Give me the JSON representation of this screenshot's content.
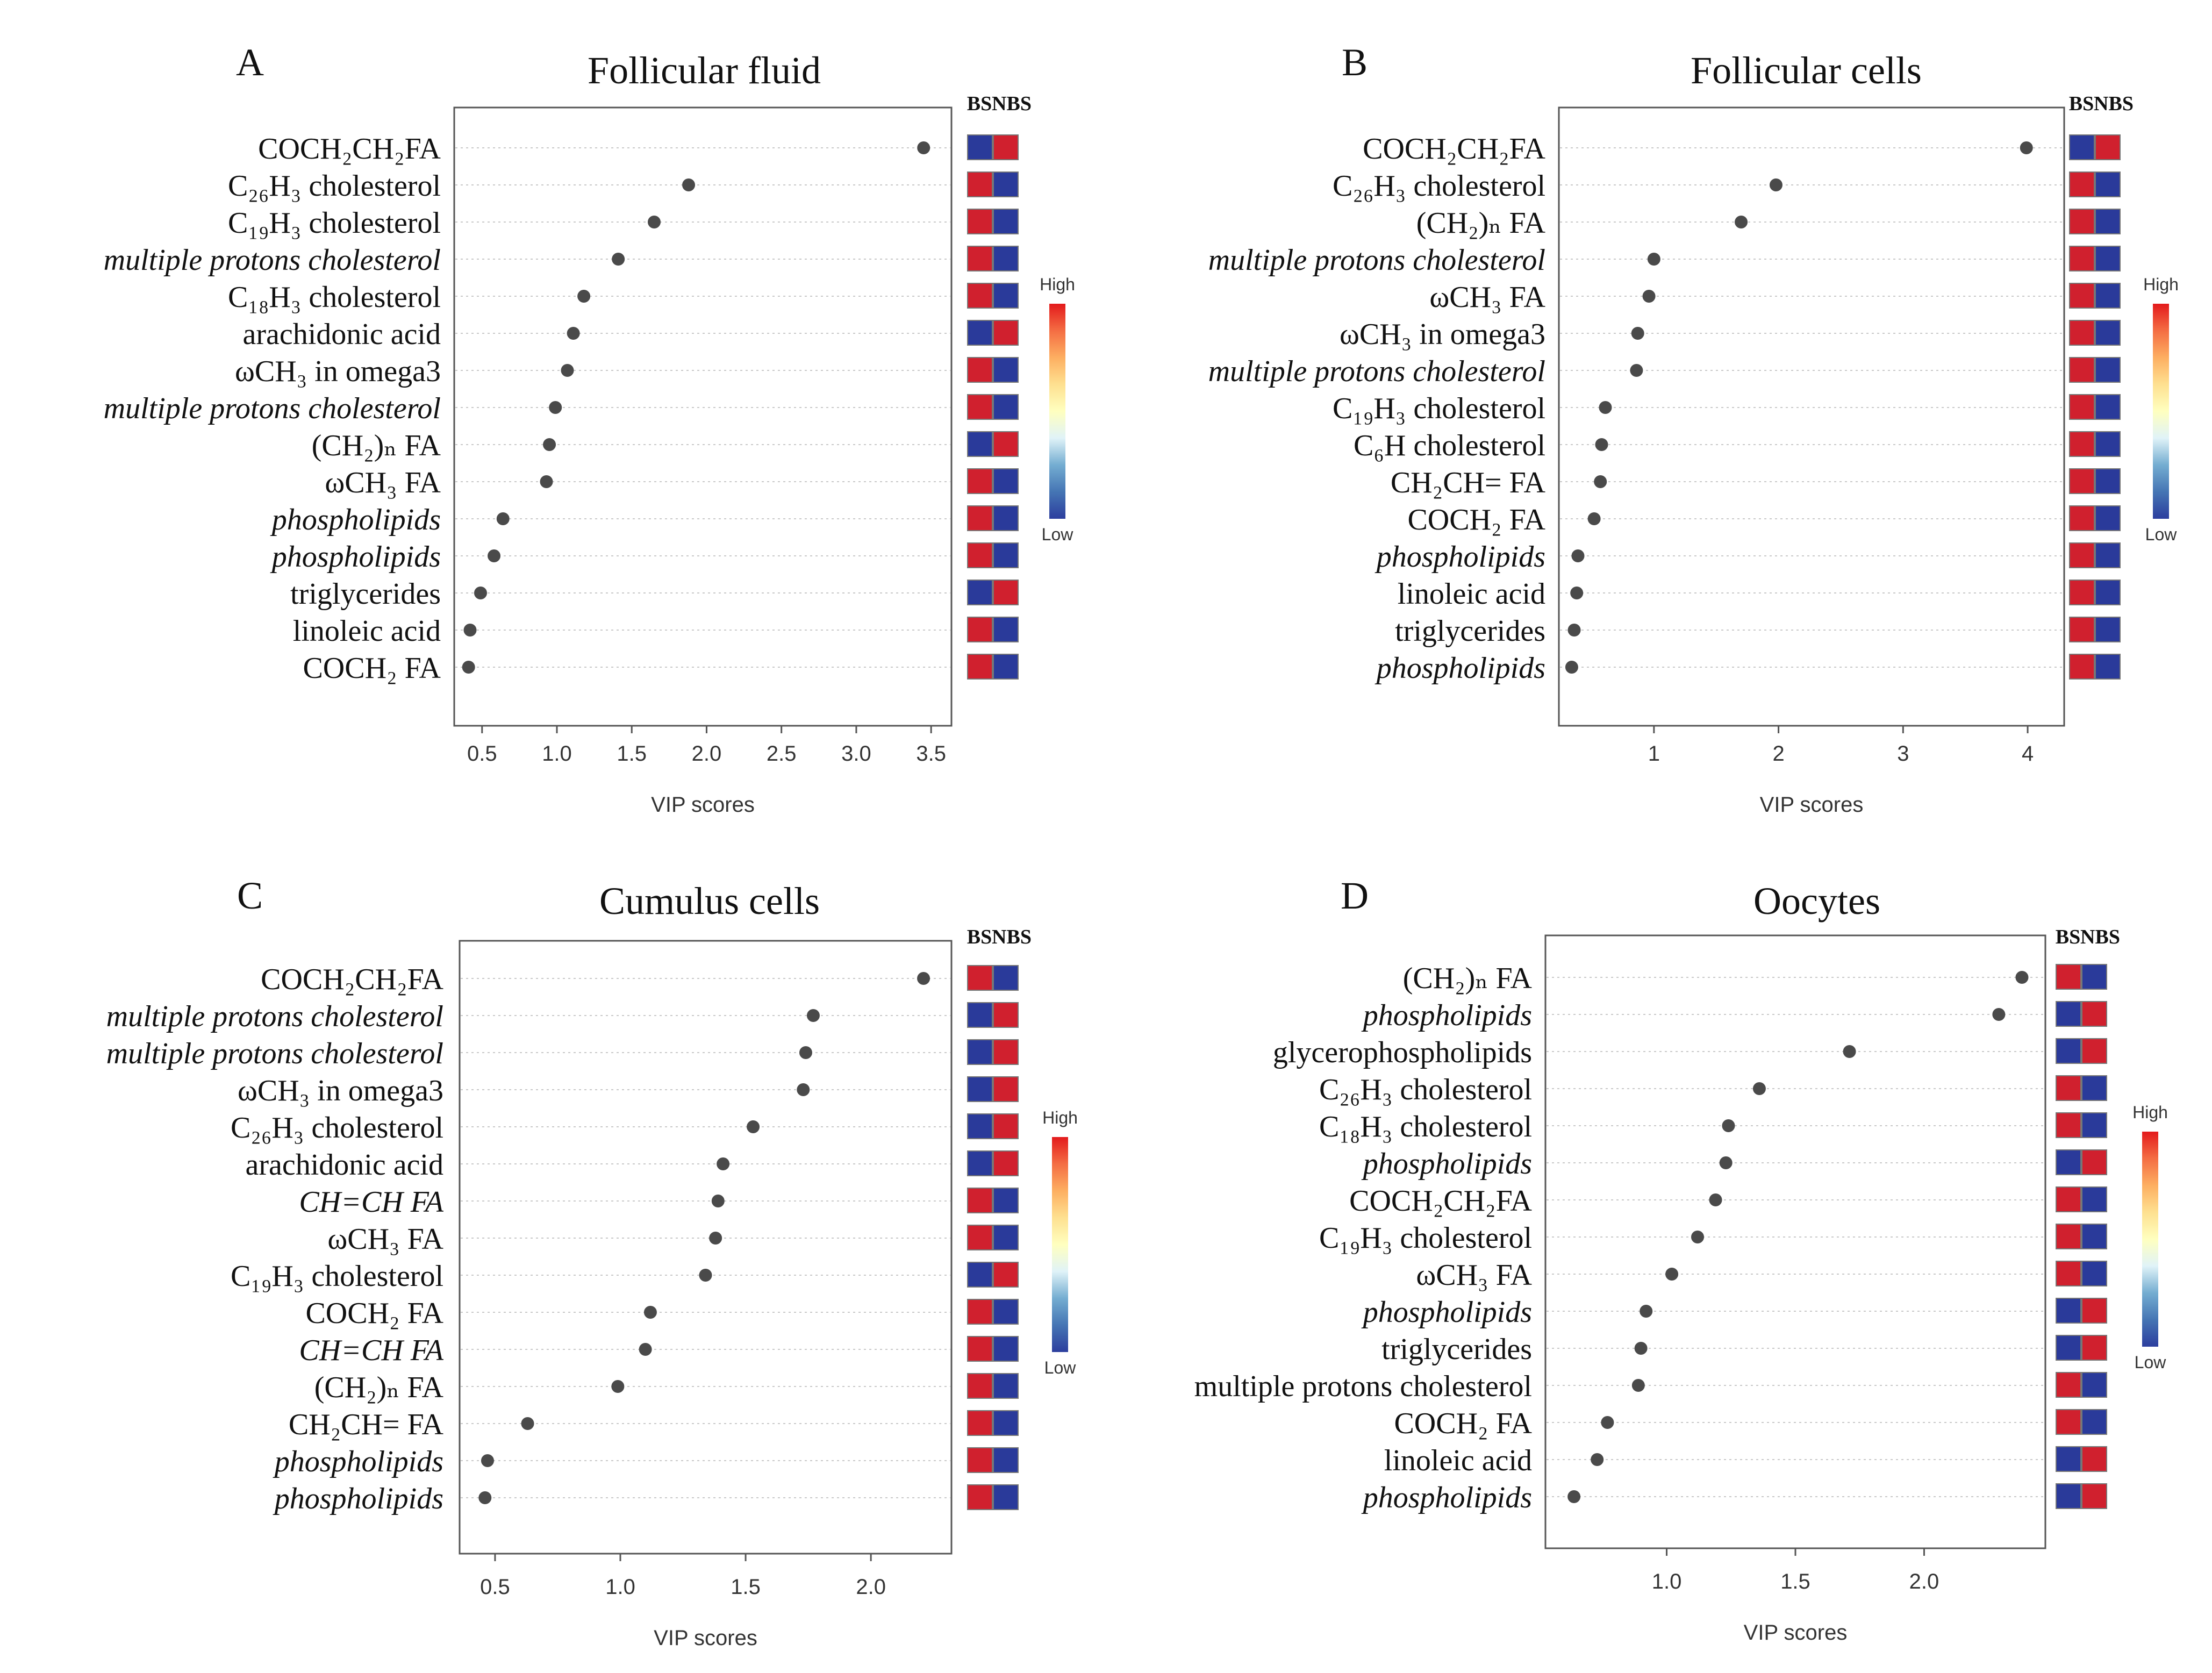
{
  "figure": {
    "xlabel": "VIP scores",
    "legend": {
      "columns": [
        "BS",
        "NBS"
      ],
      "high_label": "High",
      "low_label": "Low",
      "gradient_colors": [
        "#e31a1c",
        "#f46d43",
        "#fdae61",
        "#fee090",
        "#ffffbf",
        "#e0f3f8",
        "#74add1",
        "#4575b4",
        "#2c3e9e"
      ]
    },
    "colors": {
      "high": "#d0202e",
      "low": "#2a3a9a",
      "point": "#4a4a4a",
      "grid": "#c8c8c8",
      "frame": "#555555"
    }
  },
  "chart_data": [
    {
      "type": "scatter",
      "panel": "A",
      "title": "Follicular fluid",
      "xlabel": "VIP scores",
      "xlim": [
        0.35,
        3.6
      ],
      "xticks": [
        0.5,
        1.0,
        1.5,
        2.0,
        2.5,
        3.0,
        3.5
      ],
      "tick_labels": [
        "0.5",
        "1.0",
        "1.5",
        "2.0",
        "2.5",
        "3.0",
        "3.5"
      ],
      "items": [
        {
          "label": "COCH₂CH₂FA",
          "italic": false,
          "vip": 3.45,
          "bs": "low",
          "nbs": "high"
        },
        {
          "label": "C₂₆H₃ cholesterol",
          "italic": false,
          "vip": 1.88,
          "bs": "high",
          "nbs": "low"
        },
        {
          "label": "C₁₉H₃ cholesterol",
          "italic": false,
          "vip": 1.65,
          "bs": "high",
          "nbs": "low"
        },
        {
          "label": "multiple protons cholesterol",
          "italic": true,
          "vip": 1.41,
          "bs": "high",
          "nbs": "low"
        },
        {
          "label": "C₁₈H₃ cholesterol",
          "italic": false,
          "vip": 1.18,
          "bs": "high",
          "nbs": "low"
        },
        {
          "label": "arachidonic acid",
          "italic": false,
          "vip": 1.11,
          "bs": "low",
          "nbs": "high"
        },
        {
          "label": "ωCH₃ in omega3",
          "italic": false,
          "vip": 1.07,
          "bs": "high",
          "nbs": "low"
        },
        {
          "label": "multiple protons cholesterol",
          "italic": true,
          "vip": 0.99,
          "bs": "high",
          "nbs": "low"
        },
        {
          "label": "(CH₂)ₙ FA",
          "italic": false,
          "vip": 0.95,
          "bs": "low",
          "nbs": "high"
        },
        {
          "label": "ωCH₃ FA",
          "italic": false,
          "vip": 0.93,
          "bs": "high",
          "nbs": "low"
        },
        {
          "label": "phospholipids",
          "italic": true,
          "vip": 0.64,
          "bs": "high",
          "nbs": "low"
        },
        {
          "label": "phospholipids",
          "italic": true,
          "vip": 0.58,
          "bs": "high",
          "nbs": "low"
        },
        {
          "label": "triglycerides",
          "italic": false,
          "vip": 0.49,
          "bs": "low",
          "nbs": "high"
        },
        {
          "label": "linoleic acid",
          "italic": false,
          "vip": 0.42,
          "bs": "high",
          "nbs": "low"
        },
        {
          "label": "COCH₂ FA",
          "italic": false,
          "vip": 0.41,
          "bs": "high",
          "nbs": "low"
        }
      ]
    },
    {
      "type": "scatter",
      "panel": "B",
      "title": "Follicular cells",
      "xlabel": "VIP scores",
      "xlim": [
        0.28,
        4.25
      ],
      "xticks": [
        1,
        2,
        3,
        4
      ],
      "tick_labels": [
        "1",
        "2",
        "3",
        "4"
      ],
      "items": [
        {
          "label": "COCH₂CH₂FA",
          "italic": false,
          "vip": 3.99,
          "bs": "low",
          "nbs": "high"
        },
        {
          "label": "C₂₆H₃ cholesterol",
          "italic": false,
          "vip": 1.98,
          "bs": "high",
          "nbs": "low"
        },
        {
          "label": "(CH₂)ₙ FA",
          "italic": false,
          "vip": 1.7,
          "bs": "high",
          "nbs": "low"
        },
        {
          "label": "multiple protons cholesterol",
          "italic": true,
          "vip": 1.0,
          "bs": "high",
          "nbs": "low"
        },
        {
          "label": "ωCH₃ FA",
          "italic": false,
          "vip": 0.96,
          "bs": "high",
          "nbs": "low"
        },
        {
          "label": "ωCH₃ in omega3",
          "italic": false,
          "vip": 0.87,
          "bs": "high",
          "nbs": "low"
        },
        {
          "label": "multiple protons cholesterol",
          "italic": true,
          "vip": 0.86,
          "bs": "high",
          "nbs": "low"
        },
        {
          "label": "C₁₉H₃ cholesterol",
          "italic": false,
          "vip": 0.61,
          "bs": "high",
          "nbs": "low"
        },
        {
          "label": "C₆H cholesterol",
          "italic": false,
          "vip": 0.58,
          "bs": "high",
          "nbs": "low"
        },
        {
          "label": "CH₂CH= FA",
          "italic": false,
          "vip": 0.57,
          "bs": "high",
          "nbs": "low"
        },
        {
          "label": "COCH₂ FA",
          "italic": false,
          "vip": 0.52,
          "bs": "high",
          "nbs": "low"
        },
        {
          "label": "phospholipids",
          "italic": true,
          "vip": 0.39,
          "bs": "high",
          "nbs": "low"
        },
        {
          "label": "linoleic acid",
          "italic": false,
          "vip": 0.38,
          "bs": "high",
          "nbs": "low"
        },
        {
          "label": "triglycerides",
          "italic": false,
          "vip": 0.36,
          "bs": "high",
          "nbs": "low"
        },
        {
          "label": "phospholipids",
          "italic": true,
          "vip": 0.34,
          "bs": "high",
          "nbs": "low"
        }
      ]
    },
    {
      "type": "scatter",
      "panel": "C",
      "title": "Cumulus cells",
      "xlabel": "VIP scores",
      "xlim": [
        0.38,
        2.3
      ],
      "xticks": [
        0.5,
        1.0,
        1.5,
        2.0
      ],
      "tick_labels": [
        "0.5",
        "1.0",
        "1.5",
        "2.0"
      ],
      "items": [
        {
          "label": "COCH₂CH₂FA",
          "italic": false,
          "vip": 2.21,
          "bs": "high",
          "nbs": "low"
        },
        {
          "label": "multiple protons cholesterol",
          "italic": true,
          "vip": 1.77,
          "bs": "low",
          "nbs": "high"
        },
        {
          "label": "multiple protons cholesterol",
          "italic": true,
          "vip": 1.74,
          "bs": "low",
          "nbs": "high"
        },
        {
          "label": "ωCH₃ in omega3",
          "italic": false,
          "vip": 1.73,
          "bs": "low",
          "nbs": "high"
        },
        {
          "label": "C₂₆H₃ cholesterol",
          "italic": false,
          "vip": 1.53,
          "bs": "low",
          "nbs": "high"
        },
        {
          "label": "arachidonic acid",
          "italic": false,
          "vip": 1.41,
          "bs": "low",
          "nbs": "high"
        },
        {
          "label": "CH=CH FA",
          "italic": true,
          "vip": 1.39,
          "bs": "high",
          "nbs": "low"
        },
        {
          "label": "ωCH₃ FA",
          "italic": false,
          "vip": 1.38,
          "bs": "high",
          "nbs": "low"
        },
        {
          "label": "C₁₉H₃ cholesterol",
          "italic": false,
          "vip": 1.34,
          "bs": "low",
          "nbs": "high"
        },
        {
          "label": "COCH₂ FA",
          "italic": false,
          "vip": 1.12,
          "bs": "high",
          "nbs": "low"
        },
        {
          "label": "CH=CH FA",
          "italic": true,
          "vip": 1.1,
          "bs": "high",
          "nbs": "low"
        },
        {
          "label": "(CH₂)ₙ FA",
          "italic": false,
          "vip": 0.99,
          "bs": "high",
          "nbs": "low"
        },
        {
          "label": "CH₂CH= FA",
          "italic": false,
          "vip": 0.63,
          "bs": "high",
          "nbs": "low"
        },
        {
          "label": "phospholipids",
          "italic": true,
          "vip": 0.47,
          "bs": "high",
          "nbs": "low"
        },
        {
          "label": "phospholipids",
          "italic": true,
          "vip": 0.46,
          "bs": "high",
          "nbs": "low"
        }
      ]
    },
    {
      "type": "scatter",
      "panel": "D",
      "title": "Oocytes",
      "xlabel": "VIP scores",
      "xlim": [
        0.55,
        2.45
      ],
      "xticks": [
        1.0,
        1.5,
        2.0
      ],
      "tick_labels": [
        "1.0",
        "1.5",
        "2.0"
      ],
      "items": [
        {
          "label": "(CH₂)ₙ FA",
          "italic": false,
          "vip": 2.38,
          "bs": "high",
          "nbs": "low"
        },
        {
          "label": "phospholipids",
          "italic": true,
          "vip": 2.29,
          "bs": "low",
          "nbs": "high"
        },
        {
          "label": "glycerophospholipids",
          "italic": false,
          "vip": 1.71,
          "bs": "low",
          "nbs": "high"
        },
        {
          "label": "C₂₆H₃ cholesterol",
          "italic": false,
          "vip": 1.36,
          "bs": "high",
          "nbs": "low"
        },
        {
          "label": "C₁₈H₃ cholesterol",
          "italic": false,
          "vip": 1.24,
          "bs": "high",
          "nbs": "low"
        },
        {
          "label": "phospholipids",
          "italic": true,
          "vip": 1.23,
          "bs": "low",
          "nbs": "high"
        },
        {
          "label": "COCH₂CH₂FA",
          "italic": false,
          "vip": 1.19,
          "bs": "high",
          "nbs": "low"
        },
        {
          "label": "C₁₉H₃ cholesterol",
          "italic": false,
          "vip": 1.12,
          "bs": "high",
          "nbs": "low"
        },
        {
          "label": "ωCH₃ FA",
          "italic": false,
          "vip": 1.02,
          "bs": "high",
          "nbs": "low"
        },
        {
          "label": "phospholipids",
          "italic": true,
          "vip": 0.92,
          "bs": "low",
          "nbs": "high"
        },
        {
          "label": "triglycerides",
          "italic": false,
          "vip": 0.9,
          "bs": "low",
          "nbs": "high"
        },
        {
          "label": "multiple protons cholesterol",
          "italic": false,
          "vip": 0.89,
          "bs": "high",
          "nbs": "low"
        },
        {
          "label": "COCH₂ FA",
          "italic": false,
          "vip": 0.77,
          "bs": "high",
          "nbs": "low"
        },
        {
          "label": "linoleic acid",
          "italic": false,
          "vip": 0.73,
          "bs": "low",
          "nbs": "high"
        },
        {
          "label": "phospholipids",
          "italic": true,
          "vip": 0.64,
          "bs": "low",
          "nbs": "high"
        }
      ]
    }
  ]
}
